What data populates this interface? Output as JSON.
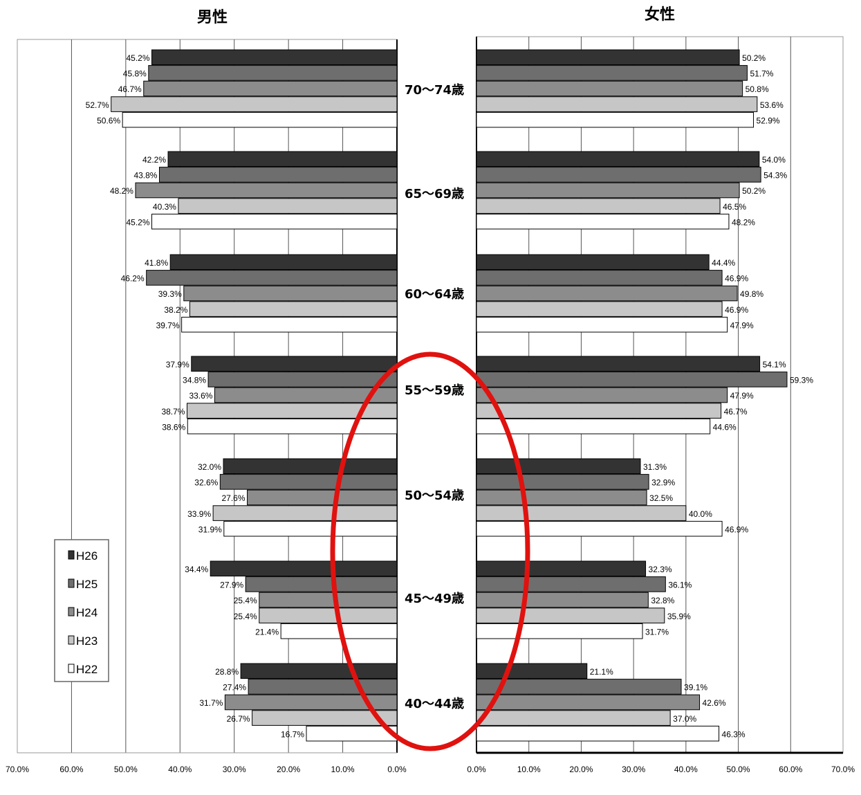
{
  "chart_data": {
    "type": "bar",
    "orientation": "horizontal",
    "layout": "butterfly",
    "panels": [
      {
        "title": "男性",
        "xlim": [
          0,
          70
        ],
        "direction": "reversed",
        "ticks": [
          "70.0%",
          "60.0%",
          "50.0%",
          "40.0%",
          "30.0%",
          "20.0%",
          "10.0%",
          "0.0%"
        ],
        "groups": [
          {
            "category": "70～74歳",
            "values": [
              45.2,
              45.8,
              46.7,
              52.7,
              50.6
            ],
            "labels": [
              "45.2%",
              "45.8%",
              "46.7%",
              "52.7%",
              "50.6%"
            ]
          },
          {
            "category": "65～69歳",
            "values": [
              42.2,
              43.8,
              48.2,
              40.3,
              45.2
            ],
            "labels": [
              "42.2%",
              "43.8%",
              "48.2%",
              "40.3%",
              "45.2%"
            ]
          },
          {
            "category": "60～64歳",
            "values": [
              41.8,
              46.2,
              39.3,
              38.2,
              39.7
            ],
            "labels": [
              "41.8%",
              "46.2%",
              "39.3%",
              "38.2%",
              "39.7%"
            ]
          },
          {
            "category": "55～59歳",
            "values": [
              37.9,
              34.8,
              33.6,
              38.7,
              38.6
            ],
            "labels": [
              "37.9%",
              "34.8%",
              "33.6%",
              "38.7%",
              "38.6%"
            ]
          },
          {
            "category": "50～54歳",
            "values": [
              32.0,
              32.6,
              27.6,
              33.9,
              31.9
            ],
            "labels": [
              "32.0%",
              "32.6%",
              "27.6%",
              "33.9%",
              "31.9%"
            ]
          },
          {
            "category": "45～49歳",
            "values": [
              34.4,
              27.9,
              25.4,
              25.4,
              21.4
            ],
            "labels": [
              "34.4%",
              "27.9%",
              "25.4%",
              "25.4%",
              "21.4%"
            ]
          },
          {
            "category": "40～44歳",
            "values": [
              28.8,
              27.4,
              31.7,
              26.7,
              16.7
            ],
            "labels": [
              "28.8%",
              "27.4%",
              "31.7%",
              "26.7%",
              "16.7%"
            ]
          }
        ]
      },
      {
        "title": "女性",
        "xlim": [
          0,
          70
        ],
        "direction": "normal",
        "ticks": [
          "0.0%",
          "10.0%",
          "20.0%",
          "30.0%",
          "40.0%",
          "50.0%",
          "60.0%",
          "70.0%"
        ],
        "groups": [
          {
            "category": "70～74歳",
            "values": [
              50.2,
              51.7,
              50.8,
              53.6,
              52.9
            ],
            "labels": [
              "50.2%",
              "51.7%",
              "50.8%",
              "53.6%",
              "52.9%"
            ]
          },
          {
            "category": "65～69歳",
            "values": [
              54.0,
              54.3,
              50.2,
              46.5,
              48.2
            ],
            "labels": [
              "54.0%",
              "54.3%",
              "50.2%",
              "46.5%",
              "48.2%"
            ]
          },
          {
            "category": "60～64歳",
            "values": [
              44.4,
              46.9,
              49.8,
              46.9,
              47.9
            ],
            "labels": [
              "44.4%",
              "46.9%",
              "49.8%",
              "46.9%",
              "47.9%"
            ]
          },
          {
            "category": "55～59歳",
            "values": [
              54.1,
              59.3,
              47.9,
              46.7,
              44.6
            ],
            "labels": [
              "54.1%",
              "59.3%",
              "47.9%",
              "46.7%",
              "44.6%"
            ]
          },
          {
            "category": "50～54歳",
            "values": [
              31.3,
              32.9,
              32.5,
              40.0,
              46.9
            ],
            "labels": [
              "31.3%",
              "32.9%",
              "32.5%",
              "40.0%",
              "46.9%"
            ]
          },
          {
            "category": "45～49歳",
            "values": [
              32.3,
              36.1,
              32.8,
              35.9,
              31.7
            ],
            "labels": [
              "32.3%",
              "36.1%",
              "32.8%",
              "35.9%",
              "31.7%"
            ]
          },
          {
            "category": "40～44歳",
            "values": [
              21.1,
              39.1,
              42.6,
              37.0,
              46.3
            ],
            "labels": [
              "21.1%",
              "39.1%",
              "42.6%",
              "37.0%",
              "46.3%"
            ]
          }
        ]
      }
    ],
    "series": [
      {
        "name": "H26",
        "color": "#333333"
      },
      {
        "name": "H25",
        "color": "#6e6e6e"
      },
      {
        "name": "H24",
        "color": "#8c8c8c"
      },
      {
        "name": "H23",
        "color": "#c6c6c6"
      },
      {
        "name": "H22",
        "color": "#ffffff"
      }
    ],
    "categories": [
      "70～74歳",
      "65～69歳",
      "60～64歳",
      "55～59歳",
      "50～54歳",
      "45～49歳",
      "40～44歳"
    ],
    "legend_position": "bottom-left",
    "grid": true,
    "annotation": {
      "shape": "ellipse",
      "color": "#e0120f",
      "highlights": [
        "55～59歳",
        "50～54歳",
        "45～49歳",
        "40～44歳"
      ]
    }
  }
}
